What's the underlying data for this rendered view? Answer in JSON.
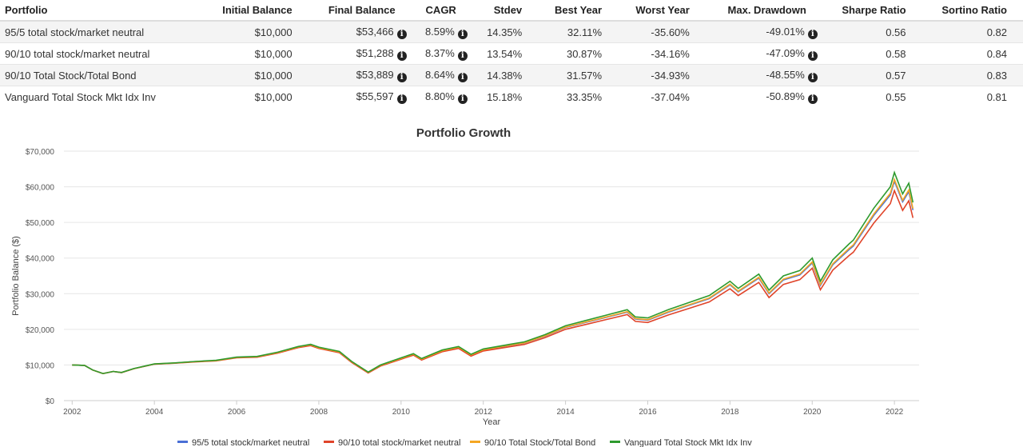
{
  "table": {
    "headers": [
      "Portfolio",
      "Initial Balance",
      "Final Balance",
      "CAGR",
      "Stdev",
      "Best Year",
      "Worst Year",
      "Max. Drawdown",
      "Sharpe Ratio",
      "Sortino Ratio"
    ],
    "rows": [
      [
        "95/5 total stock/market neutral",
        "$10,000",
        "$53,466",
        "8.59%",
        "14.35%",
        "32.11%",
        "-35.60%",
        "-49.01%",
        "0.56",
        "0.82"
      ],
      [
        "90/10 total stock/market neutral",
        "$10,000",
        "$51,288",
        "8.37%",
        "13.54%",
        "30.87%",
        "-34.16%",
        "-47.09%",
        "0.58",
        "0.84"
      ],
      [
        "90/10 Total Stock/Total Bond",
        "$10,000",
        "$53,889",
        "8.64%",
        "14.38%",
        "31.57%",
        "-34.93%",
        "-48.55%",
        "0.57",
        "0.83"
      ],
      [
        "Vanguard Total Stock Mkt Idx Inv",
        "$10,000",
        "$55,597",
        "8.80%",
        "15.18%",
        "33.35%",
        "-37.04%",
        "-50.89%",
        "0.55",
        "0.81"
      ]
    ],
    "info_icon": "info-circle-icon"
  },
  "chart_data": {
    "type": "line",
    "title": "Portfolio Growth",
    "xlabel": "Year",
    "ylabel": "Portfolio Balance ($)",
    "xlim": [
      2001.8,
      2022.6
    ],
    "ylim": [
      0,
      70000
    ],
    "xticks": [
      "2002",
      "2004",
      "2006",
      "2008",
      "2010",
      "2012",
      "2014",
      "2016",
      "2018",
      "2020",
      "2022"
    ],
    "yticks": [
      "$0",
      "$10,000",
      "$20,000",
      "$30,000",
      "$40,000",
      "$50,000",
      "$60,000",
      "$70,000"
    ],
    "grid": true,
    "legend": "bottom",
    "x": [
      2002.0,
      2002.3,
      2002.5,
      2002.75,
      2003.0,
      2003.2,
      2003.5,
      2004.0,
      2004.5,
      2005.0,
      2005.5,
      2006.0,
      2006.5,
      2007.0,
      2007.5,
      2007.8,
      2008.0,
      2008.5,
      2008.8,
      2009.2,
      2009.5,
      2010.0,
      2010.3,
      2010.5,
      2011.0,
      2011.4,
      2011.7,
      2012.0,
      2012.5,
      2013.0,
      2013.5,
      2014.0,
      2014.5,
      2015.0,
      2015.5,
      2015.7,
      2016.0,
      2016.5,
      2017.0,
      2017.5,
      2018.0,
      2018.2,
      2018.7,
      2018.95,
      2019.3,
      2019.7,
      2020.0,
      2020.2,
      2020.5,
      2020.9,
      2021.0,
      2021.5,
      2021.9,
      2022.0,
      2022.2,
      2022.35,
      2022.45
    ],
    "series": [
      {
        "name": "95/5 total stock/market neutral",
        "color": "#4a6fd6",
        "values": [
          10000,
          9890,
          8590,
          7590,
          8180,
          7880,
          8970,
          10260,
          10550,
          10940,
          11220,
          12110,
          12290,
          13470,
          15040,
          15620,
          14830,
          13630,
          10860,
          7890,
          9860,
          11820,
          12990,
          11610,
          13960,
          14930,
          12760,
          14220,
          15190,
          16150,
          18090,
          20520,
          21960,
          23400,
          24840,
          22890,
          22580,
          24790,
          26710,
          28630,
          32480,
          30530,
          34370,
          30000,
          33850,
          35270,
          38630,
          32340,
          38110,
          42410,
          43370,
          51990,
          57720,
          61560,
          55770,
          58630,
          53466
        ]
      },
      {
        "name": "90/10 total stock/market neutral",
        "color": "#e0442a",
        "values": [
          10000,
          9890,
          8580,
          7580,
          8170,
          7860,
          8950,
          10220,
          10500,
          10870,
          11140,
          12010,
          12180,
          13330,
          14870,
          15440,
          14650,
          13450,
          10700,
          7770,
          9700,
          11620,
          12770,
          11400,
          13700,
          14640,
          12500,
          13930,
          14860,
          15780,
          17660,
          20010,
          21390,
          22770,
          24140,
          22230,
          21920,
          24040,
          25870,
          27700,
          31390,
          29490,
          33160,
          28930,
          32610,
          33950,
          37160,
          31100,
          36620,
          40720,
          41630,
          49840,
          55290,
          58950,
          53380,
          56100,
          51288
        ]
      },
      {
        "name": "90/10 Total Stock/Total Bond",
        "color": "#f5a623",
        "values": [
          10000,
          9900,
          8590,
          7590,
          8190,
          7890,
          8980,
          10270,
          10560,
          10950,
          11240,
          12130,
          12310,
          13500,
          15070,
          15660,
          14860,
          13660,
          10890,
          7910,
          9890,
          11850,
          13030,
          11650,
          14010,
          14980,
          12810,
          14280,
          15250,
          16220,
          18180,
          20620,
          22070,
          23520,
          24970,
          23010,
          22700,
          24940,
          26870,
          28800,
          32680,
          30720,
          34600,
          30200,
          34080,
          35510,
          38900,
          32570,
          38380,
          42730,
          43700,
          52390,
          58180,
          62050,
          56210,
          59110,
          53889
        ]
      },
      {
        "name": "Vanguard Total Stock Mkt Idx Inv",
        "color": "#2e9a2e",
        "values": [
          10000,
          9900,
          8600,
          7600,
          8200,
          7900,
          9000,
          10300,
          10600,
          11000,
          11300,
          12200,
          12400,
          13600,
          15200,
          15800,
          15000,
          13800,
          11000,
          8000,
          10000,
          12000,
          13200,
          11800,
          14200,
          15200,
          13000,
          14500,
          15500,
          16500,
          18500,
          21000,
          22500,
          24000,
          25500,
          23500,
          23200,
          25500,
          27500,
          29500,
          33500,
          31500,
          35500,
          31000,
          35000,
          36500,
          40000,
          33500,
          39500,
          44000,
          45000,
          54000,
          60000,
          64000,
          58000,
          61000,
          55597
        ]
      }
    ]
  }
}
